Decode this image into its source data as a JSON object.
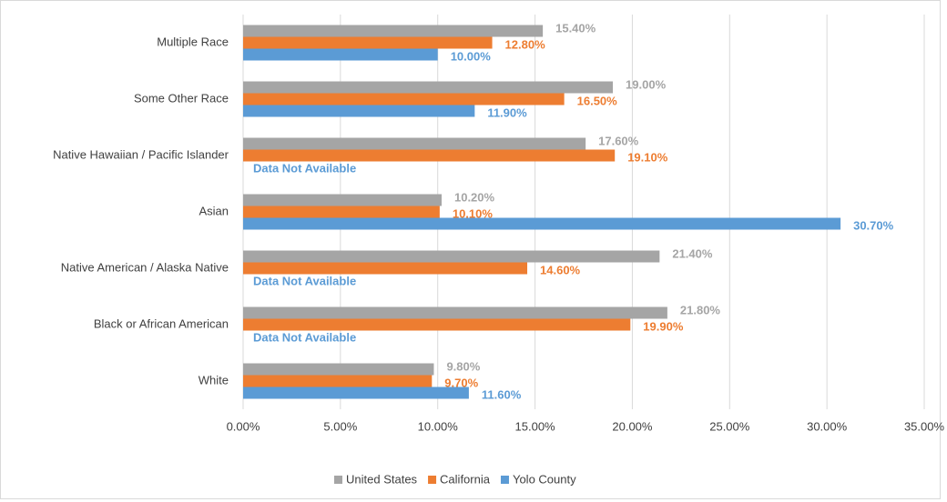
{
  "chart_data": {
    "type": "bar",
    "orientation": "horizontal",
    "categories": [
      "Multiple Race",
      "Some Other Race",
      "Native Hawaiian / Pacific Islander",
      "Asian",
      "Native American / Alaska Native",
      "Black or African American",
      "White"
    ],
    "series": [
      {
        "name": "United States",
        "color": "#a5a5a5",
        "values": [
          15.4,
          19.0,
          17.6,
          10.2,
          21.4,
          21.8,
          9.8
        ],
        "value_labels": [
          "15.40%",
          "19.00%",
          "17.60%",
          "10.20%",
          "21.40%",
          "21.80%",
          "9.80%"
        ]
      },
      {
        "name": "California",
        "color": "#ed7d31",
        "values": [
          12.8,
          16.5,
          19.1,
          10.1,
          14.6,
          19.9,
          9.7
        ],
        "value_labels": [
          "12.80%",
          "16.50%",
          "19.10%",
          "10.10%",
          "14.60%",
          "19.90%",
          "9.70%"
        ]
      },
      {
        "name": "Yolo County",
        "color": "#5b9bd5",
        "values": [
          10.0,
          11.9,
          null,
          30.7,
          null,
          null,
          11.6
        ],
        "value_labels": [
          "10.00%",
          "11.90%",
          "Data Not Available",
          "30.70%",
          "Data Not Available",
          "Data Not Available",
          "11.60%"
        ]
      }
    ],
    "xlim": [
      0,
      35
    ],
    "xticks": [
      {
        "value": 0,
        "label": "0.00%"
      },
      {
        "value": 5,
        "label": "5.00%"
      },
      {
        "value": 10,
        "label": "10.00%"
      },
      {
        "value": 15,
        "label": "15.00%"
      },
      {
        "value": 20,
        "label": "20.00%"
      },
      {
        "value": 25,
        "label": "25.00%"
      },
      {
        "value": 30,
        "label": "30.00%"
      },
      {
        "value": 35,
        "label": "35.00%"
      }
    ],
    "grid": true,
    "legend": "bottom"
  }
}
